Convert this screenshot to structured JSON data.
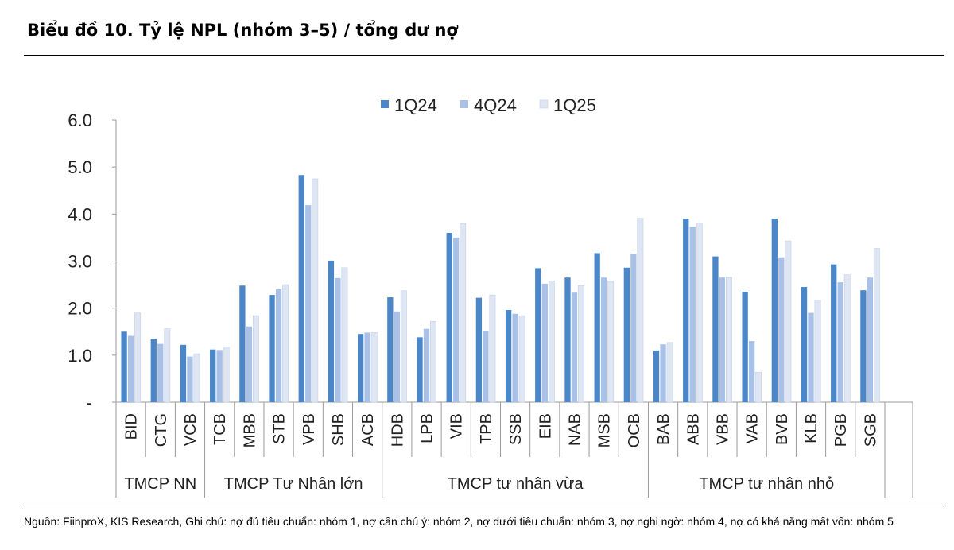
{
  "title": "Biểu đồ 10. Tỷ lệ NPL (nhóm 3–5) / tổng dư nợ",
  "note": "Nguồn: FiinproX, KIS Research, Ghi chú: nợ đủ tiêu chuẩn: nhóm 1, nợ cần chú ý: nhóm 2, nợ dưới tiêu chuẩn: nhóm 3, nợ nghi ngờ: nhóm 4, nợ có khả năng mất vốn: nhóm 5",
  "chart_data": {
    "type": "bar",
    "categories": [
      "BID",
      "CTG",
      "VCB",
      "TCB",
      "MBB",
      "STB",
      "VPB",
      "SHB",
      "ACB",
      "HDB",
      "LPB",
      "VIB",
      "TPB",
      "SSB",
      "EIB",
      "NAB",
      "MSB",
      "OCB",
      "BAB",
      "ABB",
      "VBB",
      "VAB",
      "BVB",
      "KLB",
      "PGB",
      "SGB"
    ],
    "groups": [
      {
        "label": "TMCP NN",
        "count": 3
      },
      {
        "label": "TMCP Tư Nhân lớn",
        "count": 6
      },
      {
        "label": "TMCP tư nhân vừa",
        "count": 9
      },
      {
        "label": "TMCP tư nhân nhỏ",
        "count": 8
      }
    ],
    "series": [
      {
        "name": "1Q24",
        "color": "#4a86c8",
        "values": [
          1.5,
          1.35,
          1.22,
          1.12,
          2.48,
          2.28,
          4.83,
          3.01,
          1.45,
          2.23,
          1.38,
          3.6,
          2.22,
          1.96,
          2.85,
          2.65,
          3.17,
          2.86,
          1.1,
          3.9,
          3.1,
          2.35,
          3.9,
          2.45,
          2.93,
          2.38
        ]
      },
      {
        "name": "4Q24",
        "color": "#a9c1e6",
        "values": [
          1.41,
          1.24,
          0.97,
          1.11,
          1.61,
          2.4,
          4.19,
          2.64,
          1.48,
          1.93,
          1.56,
          3.5,
          1.52,
          1.88,
          2.52,
          2.33,
          2.65,
          3.16,
          1.23,
          3.73,
          2.65,
          1.3,
          3.08,
          1.9,
          2.55,
          2.65
        ]
      },
      {
        "name": "1Q25",
        "color": "#dfe6f3",
        "values": [
          1.9,
          1.56,
          1.03,
          1.17,
          1.84,
          2.5,
          4.75,
          2.86,
          1.48,
          2.37,
          1.72,
          3.8,
          2.28,
          1.84,
          2.58,
          2.48,
          2.57,
          3.91,
          1.27,
          3.81,
          2.65,
          0.64,
          3.43,
          2.17,
          2.71,
          3.27
        ]
      }
    ],
    "y_ticks": [
      "6.0",
      "5.0",
      "4.0",
      "3.0",
      "2.0",
      "1.0",
      "-"
    ],
    "ylim": [
      0,
      6
    ],
    "legend_position": "top-center",
    "grid": false
  }
}
